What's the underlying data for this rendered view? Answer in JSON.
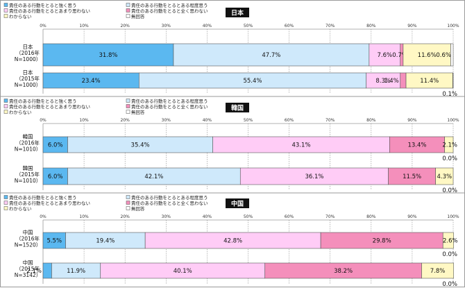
{
  "legend_labels": [
    "責任のある行動をとると強く思う",
    "責任のある行動をとるとある程度思う",
    "責任のある行動をとるとあまり思わない",
    "責任のある行動をとると全く思わない",
    "わからない",
    "無回答"
  ],
  "colors": [
    "#5bb8f0",
    "#cfe9fb",
    "#ffccf6",
    "#f48fbb",
    "#fff8c4",
    "#ffffff"
  ],
  "chart_data": [
    {
      "type": "bar",
      "title": "日本",
      "xlim": [
        0,
        100
      ],
      "ticks": [
        "0%",
        "10%",
        "20%",
        "30%",
        "40%",
        "50%",
        "60%",
        "70%",
        "80%",
        "90%",
        "100%"
      ],
      "rows": [
        {
          "label": [
            "日本",
            "（2016年",
            "N=1000）"
          ],
          "values": [
            31.8,
            47.7,
            7.6,
            0.7,
            11.6,
            0.6
          ],
          "labels": [
            "31.8%",
            "47.7%",
            "7.6%",
            "0.7%",
            "11.6%",
            "0.6%"
          ]
        },
        {
          "label": [
            "日本",
            "（2015年",
            "N=1000）"
          ],
          "values": [
            23.4,
            55.4,
            8.3,
            1.4,
            11.4,
            0.1
          ],
          "labels": [
            "23.4%",
            "55.4%",
            "8.3%",
            "1.4%",
            "11.4%",
            "0.1%"
          ]
        }
      ]
    },
    {
      "type": "bar",
      "title": "韓国",
      "xlim": [
        0,
        100
      ],
      "ticks": [
        "0%",
        "10%",
        "20%",
        "30%",
        "40%",
        "50%",
        "60%",
        "70%",
        "80%",
        "90%",
        "100%"
      ],
      "rows": [
        {
          "label": [
            "韓国",
            "（2016年",
            "N=1010）"
          ],
          "values": [
            6.0,
            35.4,
            43.1,
            13.4,
            2.1,
            0.0
          ],
          "labels": [
            "6.0%",
            "35.4%",
            "43.1%",
            "13.4%",
            "2.1%",
            "0.0%"
          ]
        },
        {
          "label": [
            "韓国",
            "（2015年",
            "N=1010）"
          ],
          "values": [
            6.0,
            42.1,
            36.1,
            11.5,
            4.3,
            0.0
          ],
          "labels": [
            "6.0%",
            "42.1%",
            "36.1%",
            "11.5%",
            "4.3%",
            "0.0%"
          ]
        }
      ]
    },
    {
      "type": "bar",
      "title": "中国",
      "xlim": [
        0,
        100
      ],
      "ticks": [
        "0%",
        "10%",
        "20%",
        "30%",
        "40%",
        "50%",
        "60%",
        "70%",
        "80%",
        "90%",
        "100%"
      ],
      "rows": [
        {
          "label": [
            "中国",
            "（2016年",
            "N=1520）"
          ],
          "values": [
            5.5,
            19.4,
            42.8,
            29.8,
            2.6,
            0.0
          ],
          "labels": [
            "5.5%",
            "19.4%",
            "42.8%",
            "29.8%",
            "2.6%",
            "0.0%"
          ]
        },
        {
          "label": [
            "中国",
            "（2015年",
            "N=3142）"
          ],
          "values": [
            2.1,
            11.9,
            40.1,
            38.2,
            7.8,
            0.0
          ],
          "labels": [
            "2.1%",
            "11.9%",
            "40.1%",
            "38.2%",
            "7.8%",
            "0.0%"
          ]
        }
      ]
    }
  ]
}
